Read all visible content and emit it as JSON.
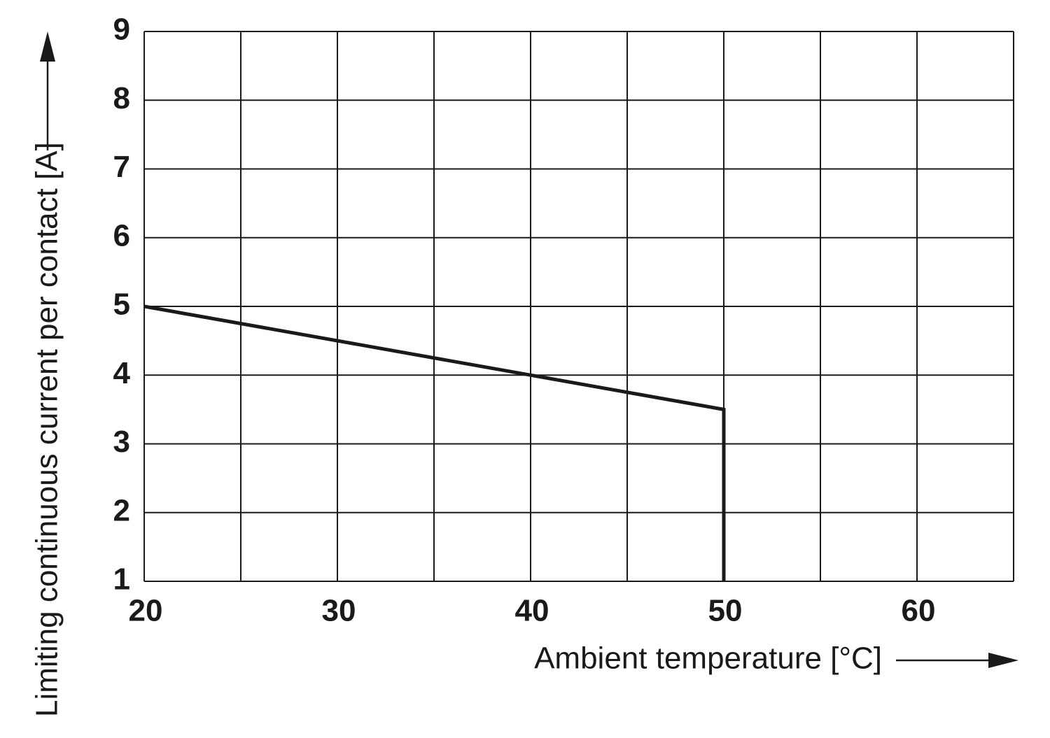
{
  "chart_data": {
    "type": "line",
    "x_label": "Ambient temperature [°C]",
    "y_label": "Limiting continuous current per contact [A]",
    "xlim": [
      20,
      65
    ],
    "xticks": [
      20,
      30,
      40,
      50,
      60
    ],
    "xgrid": [
      20,
      25,
      30,
      35,
      40,
      45,
      50,
      55,
      60,
      65
    ],
    "ylim": [
      1,
      9
    ],
    "yticks": [
      1,
      2,
      3,
      4,
      5,
      6,
      7,
      8,
      9
    ],
    "grid": true,
    "x": [
      20,
      50,
      50
    ],
    "series": [
      {
        "color": "#1a1a1a",
        "values": [
          5,
          3.5,
          1
        ]
      }
    ]
  }
}
